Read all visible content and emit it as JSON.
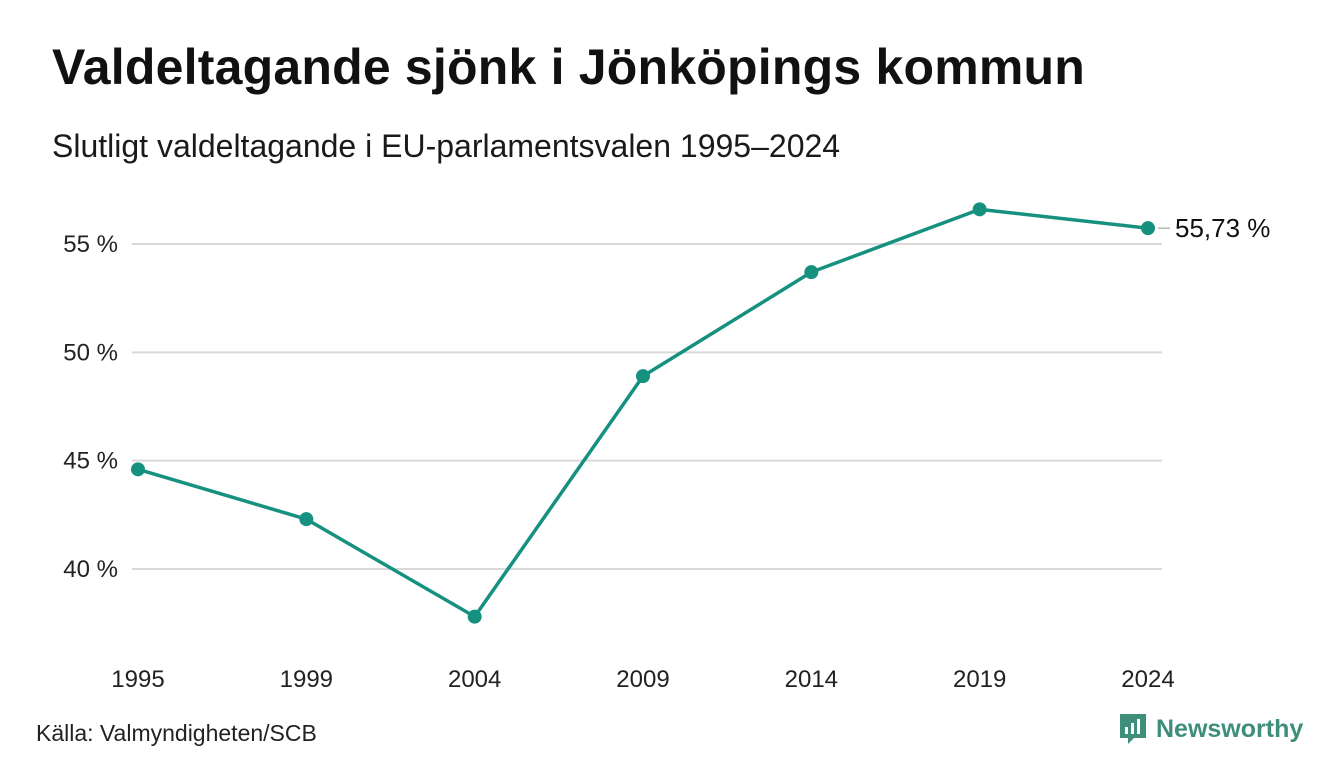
{
  "title": "Valdeltagande sjönk i Jönköpings kommun",
  "subtitle": "Slutligt valdeltagande i EU-parlamentsvalen 1995–2024",
  "source": "Källa: Valmyndigheten/SCB",
  "brand": "Newsworthy",
  "colors": {
    "line": "#17917f",
    "grid": "#d9d9d9",
    "brand": "#3f8e7a"
  },
  "icons": {
    "brand_logo": "newsworthy-logo-icon"
  },
  "chart_data": {
    "type": "line",
    "x": [
      "1995",
      "1999",
      "2004",
      "2009",
      "2014",
      "2019",
      "2024"
    ],
    "series": [
      {
        "values": [
          44.6,
          42.3,
          37.8,
          48.9,
          53.7,
          56.6,
          55.73
        ]
      }
    ],
    "y_ticks": [
      40,
      45,
      50,
      55
    ],
    "y_tick_labels": [
      "40 %",
      "45 %",
      "50 %",
      "55 %"
    ],
    "ylim": [
      36,
      58
    ],
    "grid": "horizontal",
    "end_label": "55,73 %"
  }
}
